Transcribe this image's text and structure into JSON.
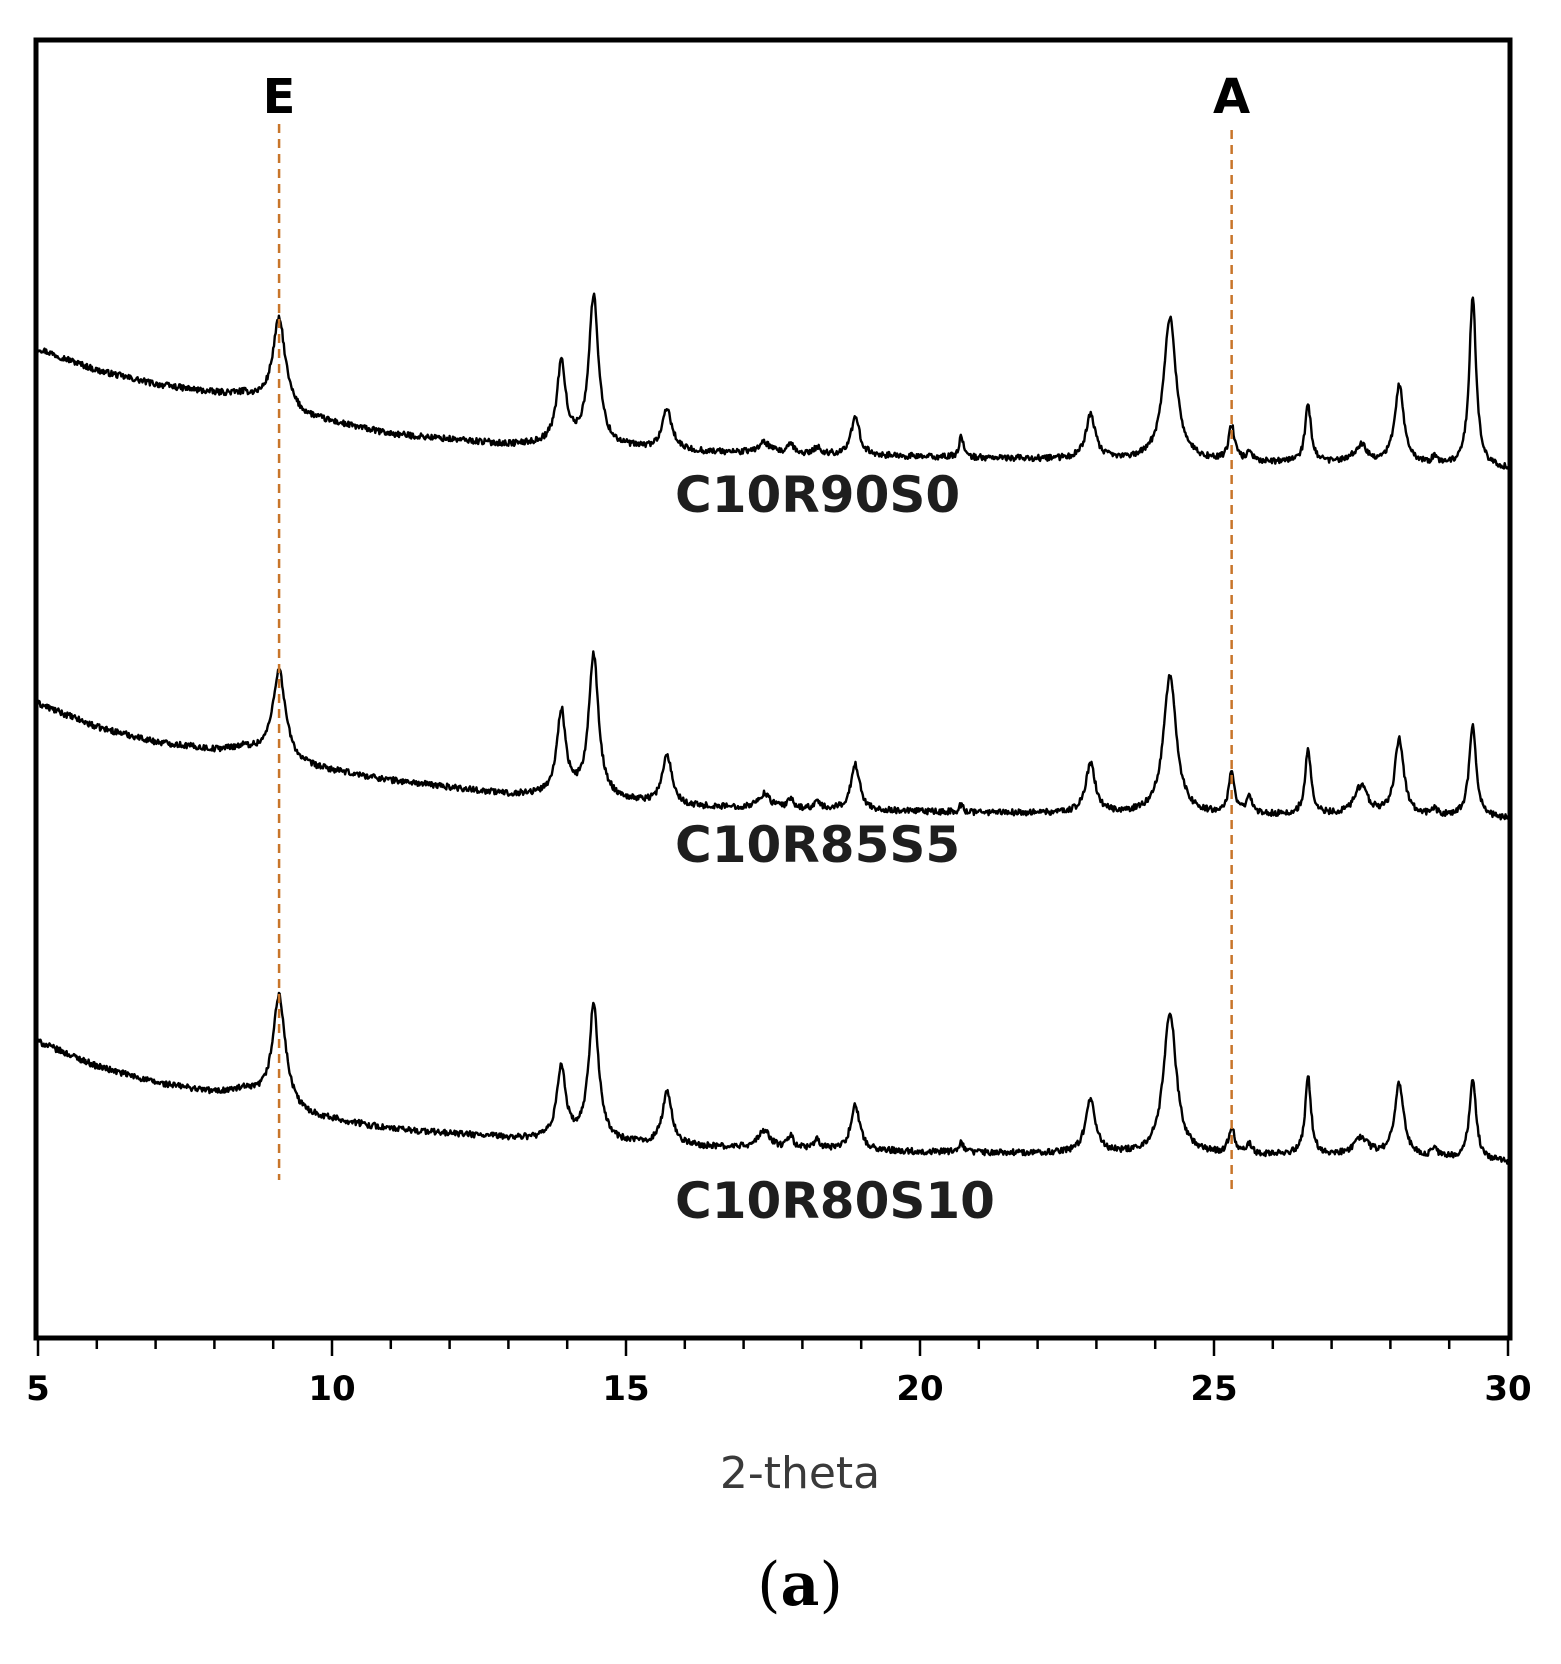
{
  "chart_data": {
    "type": "line",
    "xlabel": "2-theta",
    "ylabel": "",
    "xlim": [
      5,
      30
    ],
    "x_ticks": [
      5,
      10,
      15,
      20,
      25,
      30
    ],
    "y_ticks": [],
    "grid": false,
    "legend": "none",
    "caption": {
      "open": "(",
      "letter": "a",
      "close": ")"
    },
    "line_color": "#000000",
    "marker_color": "#c8752a",
    "reference_lines": [
      {
        "label": "E",
        "x": 9.1
      },
      {
        "label": "A",
        "x": 25.3
      }
    ],
    "peaks": [
      {
        "x": 9.1,
        "width": 0.13
      },
      {
        "x": 13.9,
        "width": 0.09
      },
      {
        "x": 14.45,
        "width": 0.1
      },
      {
        "x": 15.7,
        "width": 0.1
      },
      {
        "x": 17.35,
        "width": 0.12
      },
      {
        "x": 17.8,
        "width": 0.06
      },
      {
        "x": 18.25,
        "width": 0.06
      },
      {
        "x": 18.9,
        "width": 0.09
      },
      {
        "x": 20.7,
        "width": 0.04
      },
      {
        "x": 22.9,
        "width": 0.1
      },
      {
        "x": 24.25,
        "width": 0.13
      },
      {
        "x": 25.3,
        "width": 0.06
      },
      {
        "x": 25.6,
        "width": 0.05
      },
      {
        "x": 26.6,
        "width": 0.06
      },
      {
        "x": 27.5,
        "width": 0.13
      },
      {
        "x": 28.15,
        "width": 0.09
      },
      {
        "x": 28.75,
        "width": 0.05
      },
      {
        "x": 29.4,
        "width": 0.07
      }
    ],
    "series": [
      {
        "name": "C10R90S0",
        "baseline": [
          [
            5,
            0.18
          ],
          [
            6,
            0.055
          ],
          [
            7,
            -0.025
          ],
          [
            8,
            -0.075
          ],
          [
            8.5,
            -0.085
          ],
          [
            9.5,
            -0.21
          ],
          [
            11,
            -0.31
          ],
          [
            13,
            -0.37
          ],
          [
            14,
            -0.37
          ],
          [
            16,
            -0.41
          ],
          [
            20,
            -0.44
          ],
          [
            25,
            -0.47
          ],
          [
            28,
            -0.48
          ],
          [
            30,
            -0.51
          ]
        ],
        "peak_heights": [
          0.51,
          0.46,
          0.85,
          0.23,
          0.06,
          0.05,
          0.04,
          0.21,
          0.13,
          0.25,
          0.82,
          0.2,
          0.06,
          0.33,
          0.1,
          0.45,
          0.04,
          0.98
        ]
      },
      {
        "name": "C10R85S5",
        "baseline": [
          [
            5,
            0.18
          ],
          [
            6,
            0.045
          ],
          [
            7,
            -0.04
          ],
          [
            8,
            -0.085
          ],
          [
            8.5,
            -0.075
          ],
          [
            9.5,
            -0.18
          ],
          [
            11,
            -0.26
          ],
          [
            13,
            -0.34
          ],
          [
            14,
            -0.35
          ],
          [
            16,
            -0.41
          ],
          [
            20,
            -0.44
          ],
          [
            25,
            -0.46
          ],
          [
            28,
            -0.46
          ],
          [
            30,
            -0.48
          ]
        ],
        "peak_heights": [
          0.51,
          0.48,
          0.81,
          0.28,
          0.08,
          0.05,
          0.04,
          0.26,
          0.04,
          0.28,
          0.8,
          0.25,
          0.1,
          0.38,
          0.16,
          0.44,
          0.04,
          0.54
        ]
      },
      {
        "name": "C10R80S10",
        "baseline": [
          [
            5,
            0.19
          ],
          [
            6,
            0.05
          ],
          [
            7,
            -0.045
          ],
          [
            8,
            -0.1
          ],
          [
            8.5,
            -0.095
          ],
          [
            9.5,
            -0.23
          ],
          [
            11,
            -0.31
          ],
          [
            13,
            -0.36
          ],
          [
            14,
            -0.38
          ],
          [
            16,
            -0.41
          ],
          [
            20,
            -0.44
          ],
          [
            25,
            -0.46
          ],
          [
            28,
            -0.46
          ],
          [
            30,
            -0.5
          ]
        ],
        "peak_heights": [
          0.63,
          0.42,
          0.78,
          0.3,
          0.1,
          0.07,
          0.05,
          0.26,
          0.06,
          0.31,
          0.82,
          0.15,
          0.06,
          0.45,
          0.1,
          0.41,
          0.05,
          0.46
        ]
      }
    ]
  }
}
